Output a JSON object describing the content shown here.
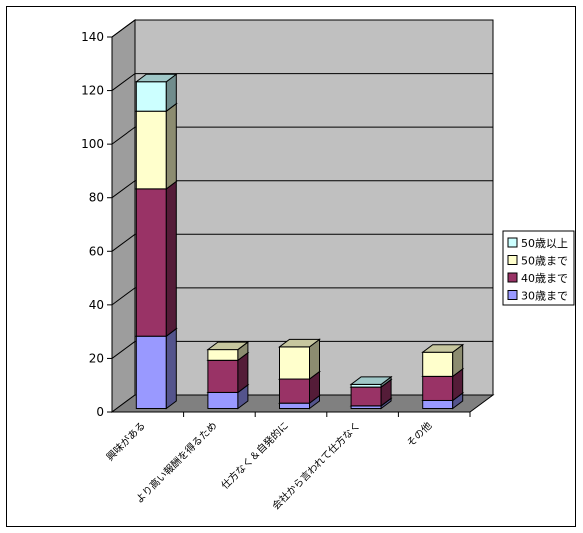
{
  "chart_data": {
    "type": "bar",
    "stacked": true,
    "categories": [
      "興味がある",
      "より高い報酬を得るため",
      "仕方なく＆自発的に",
      "会社から言われて仕方なく",
      "その他"
    ],
    "series": [
      {
        "name": "30歳まで",
        "values": [
          27,
          6,
          2,
          1,
          3
        ],
        "color": "#9999ff"
      },
      {
        "name": "40歳まで",
        "values": [
          55,
          12,
          9,
          7,
          9
        ],
        "color": "#993366"
      },
      {
        "name": "50歳まで",
        "values": [
          29,
          4,
          12,
          0,
          9
        ],
        "color": "#ffffcc"
      },
      {
        "name": "50歳以上",
        "values": [
          11,
          0,
          0,
          1,
          0
        ],
        "color": "#ccffff"
      }
    ],
    "ylim": [
      0,
      140
    ],
    "yticks": [
      0,
      20,
      40,
      60,
      80,
      100,
      120,
      140
    ],
    "grid": true,
    "legend_position": "right",
    "wall_color": "#c0c0c0"
  }
}
